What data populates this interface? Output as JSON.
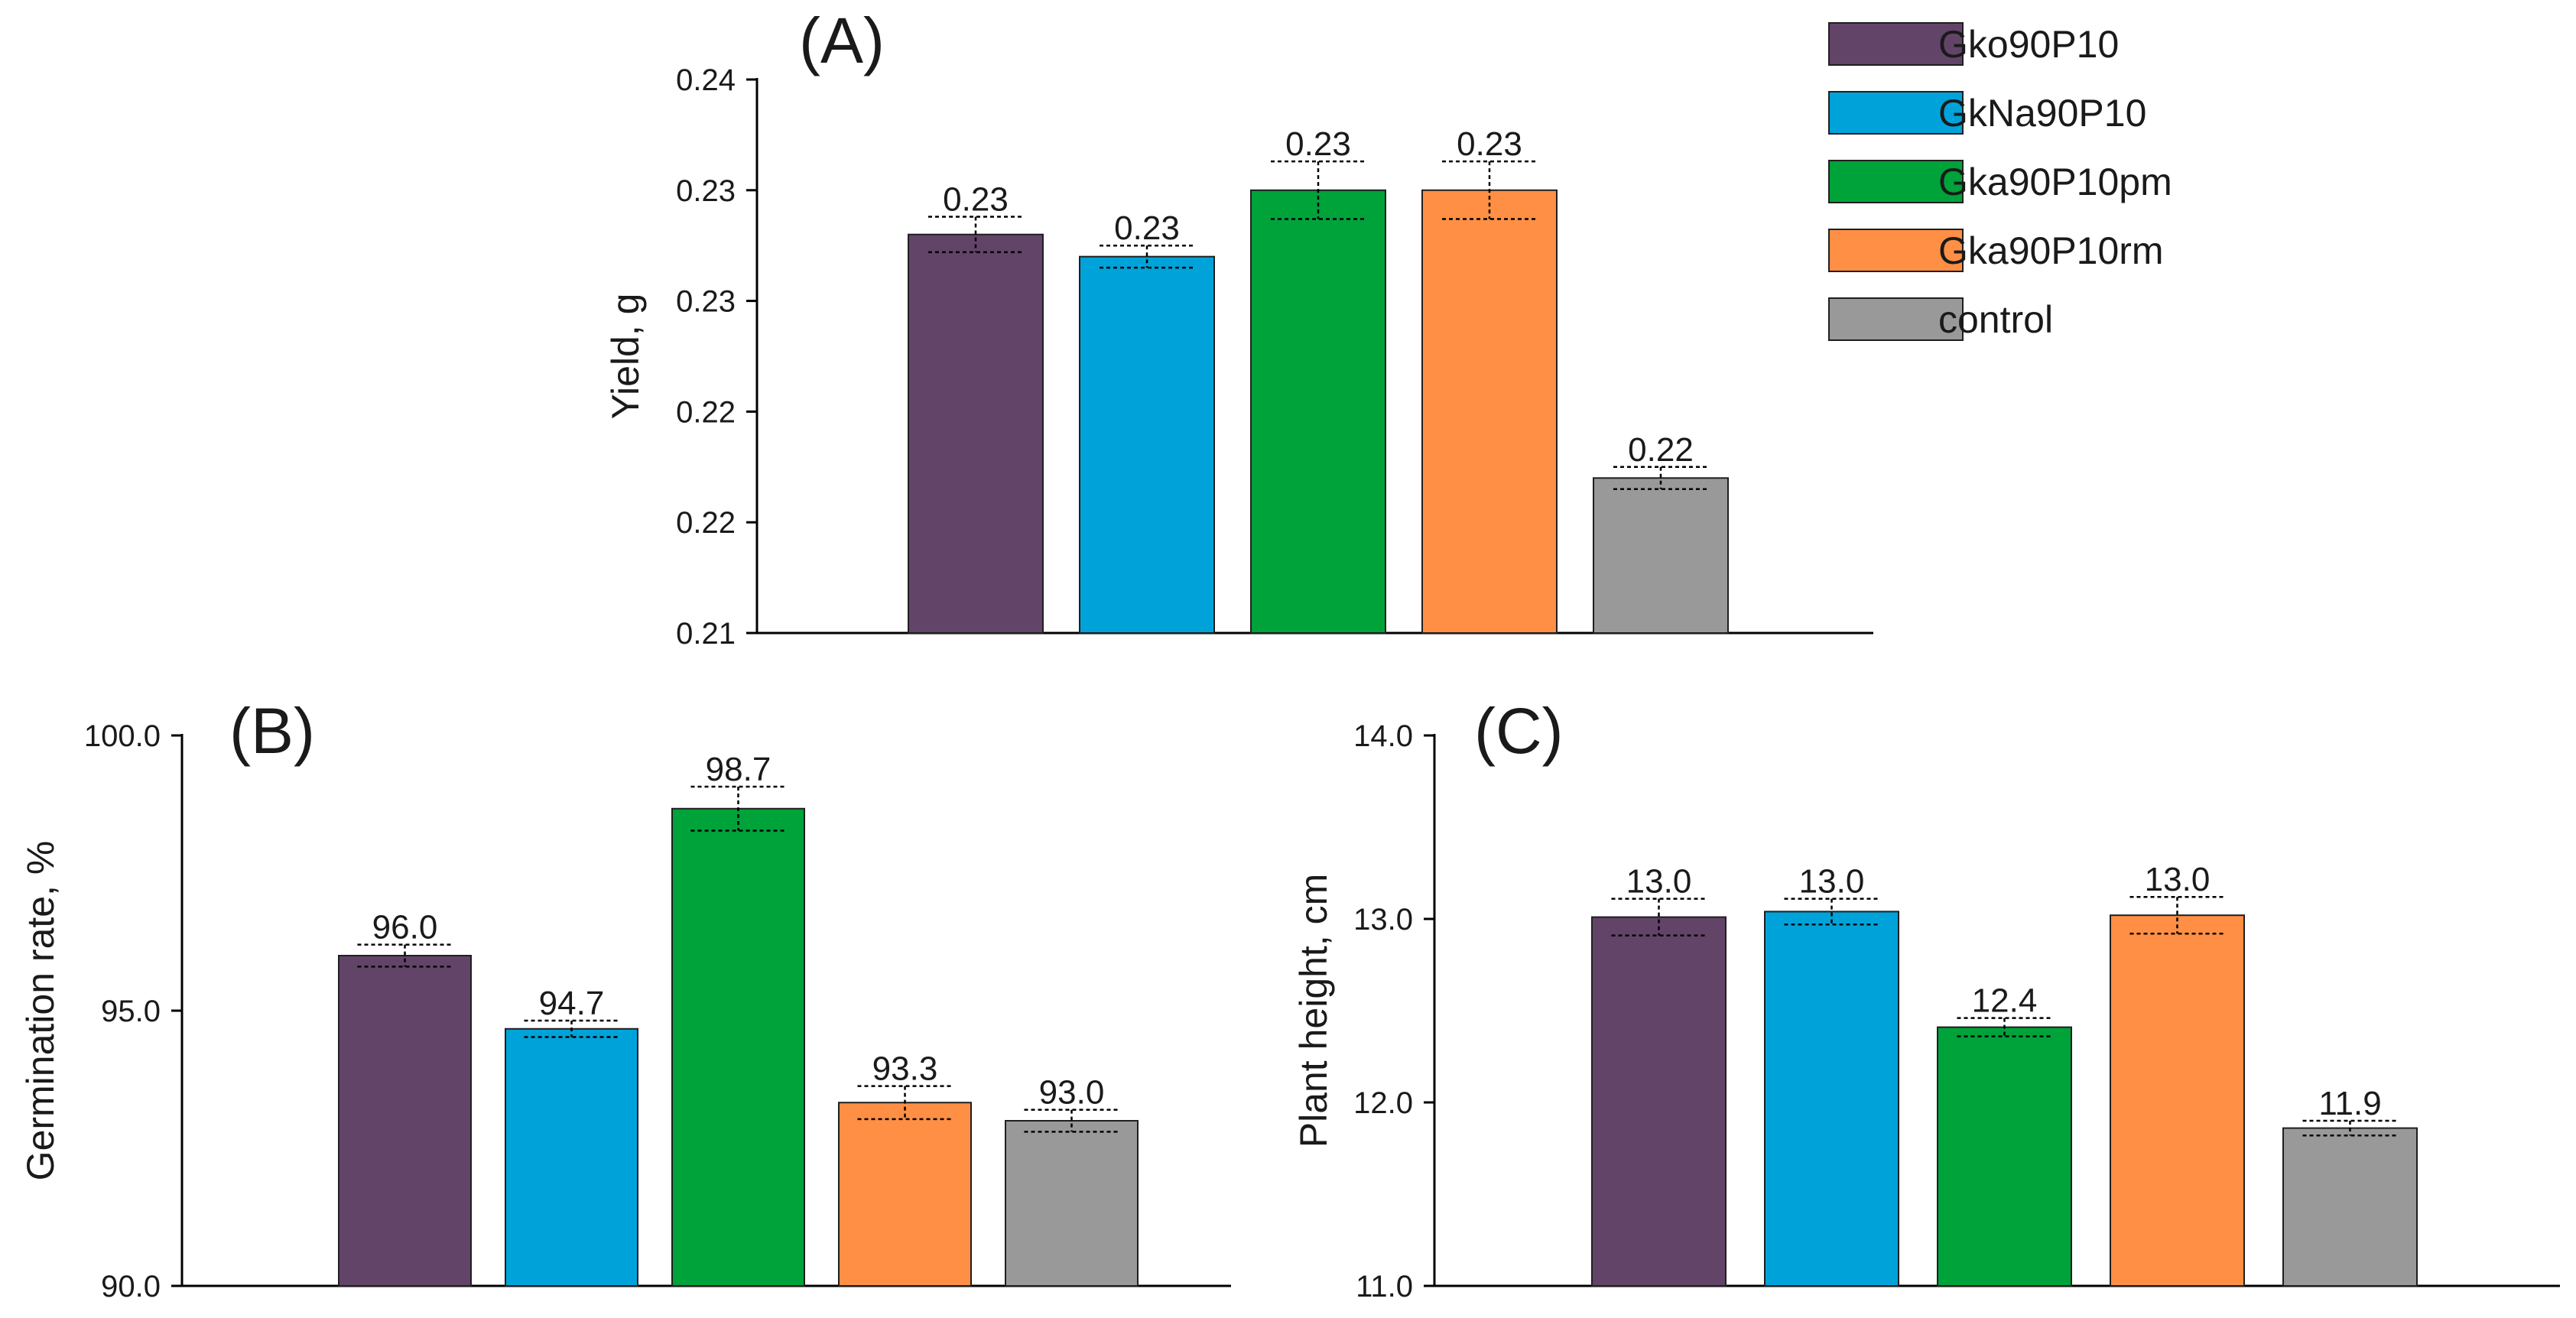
{
  "legend": {
    "items": [
      {
        "label": "Gko90P10",
        "color": "#634469"
      },
      {
        "label": "GkNa90P10",
        "color": "#00a3d9"
      },
      {
        "label": "Gka90P10pm",
        "color": "#00a23a"
      },
      {
        "label": "Gka90P10rm",
        "color": "#ff8f45"
      },
      {
        "label": "control",
        "color": "#999999"
      }
    ]
  },
  "chart_data": [
    {
      "id": "A",
      "type": "bar",
      "panel_label": "(A)",
      "title": "",
      "xlabel": "",
      "ylabel": "Yield, g",
      "ylim": [
        0.21,
        0.235
      ],
      "y_ticks": [
        0.21,
        0.215,
        0.22,
        0.225,
        0.23,
        0.235
      ],
      "y_tick_labels": [
        "0.21",
        "0.22",
        "0.22",
        "0.23",
        "0.23",
        "0.24"
      ],
      "categories": [
        "Gko90P10",
        "GkNa90P10",
        "Gka90P10pm",
        "Gka90P10rm",
        "control"
      ],
      "values": [
        0.228,
        0.227,
        0.23,
        0.23,
        0.217
      ],
      "errors": [
        0.0008,
        0.0005,
        0.0013,
        0.0013,
        0.0005
      ],
      "value_labels": [
        "0.23",
        "0.23",
        "0.23",
        "0.23",
        "0.22"
      ]
    },
    {
      "id": "B",
      "type": "bar",
      "panel_label": "(B)",
      "title": "",
      "xlabel": "",
      "ylabel": "Germination rate, %",
      "ylim": [
        90,
        100
      ],
      "y_ticks": [
        90,
        95,
        100
      ],
      "y_tick_labels": [
        "90.0",
        "95.0",
        "100.0"
      ],
      "categories": [
        "Gko90P10",
        "GkNa90P10",
        "Gka90P10pm",
        "Gka90P10rm",
        "control"
      ],
      "values": [
        96.0,
        94.67,
        98.67,
        93.33,
        93.0
      ],
      "errors": [
        0.2,
        0.15,
        0.4,
        0.3,
        0.2
      ],
      "value_labels": [
        "96.0",
        "94.7",
        "98.7",
        "93.3",
        "93.0"
      ]
    },
    {
      "id": "C",
      "type": "bar",
      "panel_label": "(C)",
      "title": "",
      "xlabel": "",
      "ylabel": "Plant height, cm",
      "ylim": [
        11,
        14
      ],
      "y_ticks": [
        11,
        12,
        13,
        14
      ],
      "y_tick_labels": [
        "11.0",
        "12.0",
        "13.0",
        "14.0"
      ],
      "categories": [
        "Gko90P10",
        "GkNa90P10",
        "Gka90P10pm",
        "Gka90P10rm",
        "control"
      ],
      "values": [
        13.01,
        13.04,
        12.41,
        13.02,
        11.86
      ],
      "errors": [
        0.1,
        0.07,
        0.05,
        0.1,
        0.04
      ],
      "value_labels": [
        "13.0",
        "13.0",
        "12.4",
        "13.0",
        "11.9"
      ]
    }
  ]
}
